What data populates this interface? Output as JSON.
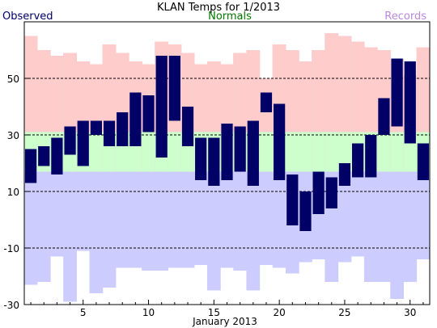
{
  "chart_data": {
    "type": "bar",
    "title": "KLAN Temps for 1/2013",
    "xlabel": "January 2013",
    "ylabel": "",
    "ylim": [
      -30,
      70
    ],
    "xlim": [
      0.5,
      31.5
    ],
    "yticks": [
      -30,
      -10,
      10,
      30,
      50
    ],
    "xticks": [
      5,
      10,
      15,
      20,
      25,
      30
    ],
    "gridlines_dashed_at": [
      -10,
      10,
      30,
      50
    ],
    "legend": [
      {
        "label": "Observed",
        "color": "#000066",
        "position": "top-left"
      },
      {
        "label": "Normals",
        "color": "#007700",
        "position": "top-center"
      },
      {
        "label": "Records",
        "color": "#bb88dd",
        "position": "top-right"
      }
    ],
    "colors": {
      "observed": "#000066",
      "normals": "#ccffcc",
      "records_high": "#ffcccc",
      "records_low": "#ccccff"
    },
    "days": [
      1,
      2,
      3,
      4,
      5,
      6,
      7,
      8,
      9,
      10,
      11,
      12,
      13,
      14,
      15,
      16,
      17,
      18,
      19,
      20,
      21,
      22,
      23,
      24,
      25,
      26,
      27,
      28,
      29,
      30,
      31
    ],
    "series": [
      {
        "name": "Observed",
        "high": [
          25,
          26,
          29,
          33,
          35,
          35,
          35,
          38,
          45,
          44,
          58,
          58,
          40,
          29,
          29,
          34,
          33,
          35,
          45,
          41,
          16,
          10,
          17,
          15,
          20,
          27,
          30,
          43,
          57,
          56,
          27
        ],
        "low": [
          13,
          19,
          16,
          23,
          19,
          30,
          26,
          26,
          26,
          31,
          22,
          35,
          26,
          14,
          12,
          14,
          17,
          12,
          38,
          14,
          -2,
          -4,
          2,
          4,
          12,
          15,
          15,
          30,
          33,
          27,
          14
        ]
      },
      {
        "name": "Normals",
        "high": [
          31,
          31,
          31,
          31,
          31,
          31,
          31,
          31,
          31,
          31,
          31,
          31,
          31,
          31,
          31,
          31,
          31,
          31,
          31,
          31,
          31,
          31,
          31,
          31,
          31,
          31,
          31,
          31,
          31,
          31,
          31
        ],
        "low": [
          17,
          17,
          17,
          17,
          17,
          17,
          17,
          17,
          17,
          17,
          17,
          17,
          17,
          17,
          17,
          17,
          17,
          17,
          17,
          17,
          17,
          17,
          17,
          17,
          17,
          17,
          17,
          17,
          17,
          17,
          17
        ]
      },
      {
        "name": "Records",
        "high": [
          65,
          60,
          58,
          59,
          56,
          55,
          62,
          59,
          56,
          55,
          63,
          62,
          59,
          55,
          56,
          55,
          59,
          60,
          50,
          62,
          60,
          56,
          60,
          66,
          65,
          63,
          61,
          60,
          57,
          51,
          61
        ],
        "low": [
          -23,
          -22,
          -13,
          -29,
          -11,
          -26,
          -24,
          -17,
          -17,
          -18,
          -18,
          -17,
          -17,
          -16,
          -25,
          -17,
          -18,
          -25,
          -16,
          -17,
          -19,
          -15,
          -14,
          -22,
          -15,
          -13,
          -22,
          -22,
          -28,
          -22,
          -14
        ]
      }
    ]
  }
}
